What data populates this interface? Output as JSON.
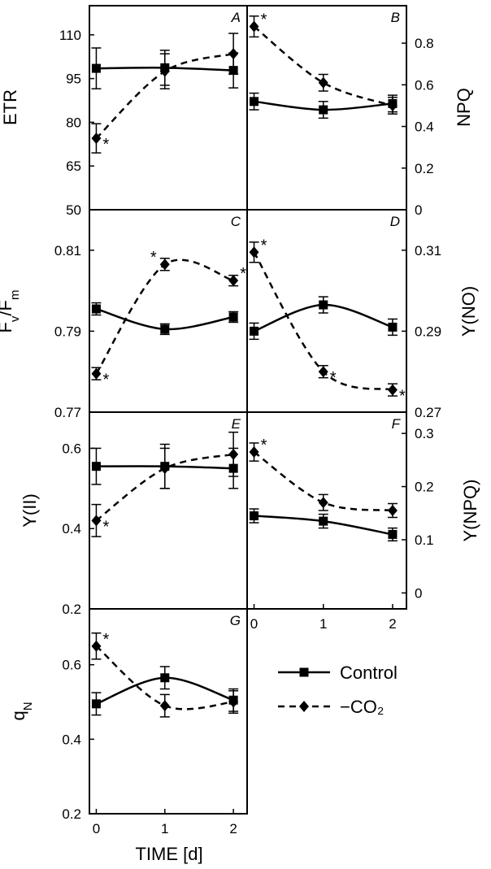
{
  "x_axis": {
    "label": "TIME [d]",
    "ticks": [
      "0",
      "1",
      "2"
    ],
    "range": [
      -0.1,
      2.2
    ]
  },
  "legend": {
    "items": [
      {
        "name": "Control",
        "line": "solid",
        "marker": "square"
      },
      {
        "name": "−CO₂",
        "line": "dashed",
        "marker": "diamond"
      }
    ]
  },
  "chart_data": [
    {
      "type": "line",
      "panel": "A",
      "ylabel_main": "ETR",
      "ylabel_sub": "",
      "yrange": [
        50,
        120
      ],
      "yticks": [
        "50",
        "65",
        "80",
        "95",
        "110"
      ],
      "x": [
        0,
        1,
        2
      ],
      "series": [
        {
          "name": "Control",
          "values": [
            98.5,
            98.7,
            97.8
          ],
          "errors": [
            7,
            6,
            6
          ]
        },
        {
          "name": "−CO₂",
          "values": [
            74.5,
            97.5,
            103.5
          ],
          "errors": [
            5,
            6,
            7
          ]
        }
      ],
      "significance": [
        0
      ]
    },
    {
      "type": "line",
      "panel": "B",
      "ylabel_main": "NPQ",
      "ylabel_sub": "",
      "yrange": [
        0,
        0.98
      ],
      "yticks": [
        "0",
        "0.2",
        "0.4",
        "0.6",
        "0.8"
      ],
      "x": [
        0,
        1,
        2
      ],
      "series": [
        {
          "name": "Control",
          "values": [
            0.52,
            0.48,
            0.51
          ],
          "errors": [
            0.04,
            0.04,
            0.04
          ]
        },
        {
          "name": "−CO₂",
          "values": [
            0.88,
            0.61,
            0.5
          ],
          "errors": [
            0.05,
            0.04,
            0.04
          ]
        }
      ],
      "significance": [
        0
      ]
    },
    {
      "type": "line",
      "panel": "C",
      "ylabel_main": "F",
      "ylabel_sub": "v",
      "ylabel_rest": "/F",
      "ylabel_sub2": "m",
      "yrange": [
        0.77,
        0.82
      ],
      "yticks": [
        "0.77",
        "0.79",
        "0.81"
      ],
      "x": [
        0,
        1,
        2
      ],
      "series": [
        {
          "name": "Control",
          "values": [
            0.7955,
            0.7905,
            0.7935
          ],
          "errors": [
            0.0015,
            0.0013,
            0.0013
          ]
        },
        {
          "name": "−CO₂",
          "values": [
            0.7795,
            0.8065,
            0.8025
          ],
          "errors": [
            0.0015,
            0.0015,
            0.0013
          ]
        }
      ],
      "significance": [
        0,
        1,
        2
      ]
    },
    {
      "type": "line",
      "panel": "D",
      "ylabel_main": "Y(NO)",
      "ylabel_sub": "",
      "yrange": [
        0.27,
        0.32
      ],
      "yticks": [
        "0.27",
        "0.29",
        "0.31"
      ],
      "x": [
        0,
        1,
        2
      ],
      "series": [
        {
          "name": "Control",
          "values": [
            0.29,
            0.2965,
            0.291
          ],
          "errors": [
            0.002,
            0.002,
            0.002
          ]
        },
        {
          "name": "−CO₂",
          "values": [
            0.3095,
            0.28,
            0.2755
          ],
          "errors": [
            0.0025,
            0.0015,
            0.0015
          ]
        }
      ],
      "significance": [
        0,
        1,
        2
      ]
    },
    {
      "type": "line",
      "panel": "E",
      "ylabel_main": "Y(II)",
      "ylabel_sub": "",
      "yrange": [
        0.2,
        0.69
      ],
      "yticks": [
        "0.2",
        "0.4",
        "0.6"
      ],
      "x": [
        0,
        1,
        2
      ],
      "series": [
        {
          "name": "Control",
          "values": [
            0.555,
            0.555,
            0.55
          ],
          "errors": [
            0.045,
            0.055,
            0.05
          ]
        },
        {
          "name": "−CO₂",
          "values": [
            0.42,
            0.55,
            0.585
          ],
          "errors": [
            0.04,
            0.05,
            0.055
          ]
        }
      ],
      "significance": [
        0
      ]
    },
    {
      "type": "line",
      "panel": "F",
      "ylabel_main": "Y(NPQ)",
      "ylabel_sub": "",
      "yrange": [
        -0.03,
        0.34
      ],
      "yticks": [
        "0",
        "0.1",
        "0.2",
        "0.3"
      ],
      "x": [
        0,
        1,
        2
      ],
      "series": [
        {
          "name": "Control",
          "values": [
            0.145,
            0.135,
            0.11
          ],
          "errors": [
            0.013,
            0.013,
            0.012
          ]
        },
        {
          "name": "−CO₂",
          "values": [
            0.265,
            0.17,
            0.155
          ],
          "errors": [
            0.017,
            0.015,
            0.013
          ]
        }
      ],
      "significance": [
        0
      ]
    },
    {
      "type": "line",
      "panel": "G",
      "ylabel_main": "q",
      "ylabel_sub": "N",
      "yrange": [
        0.2,
        0.75
      ],
      "yticks": [
        "0.2",
        "0.4",
        "0.6"
      ],
      "x": [
        0,
        1,
        2
      ],
      "series": [
        {
          "name": "Control",
          "values": [
            0.495,
            0.565,
            0.505
          ],
          "errors": [
            0.03,
            0.03,
            0.03
          ]
        },
        {
          "name": "−CO₂",
          "values": [
            0.65,
            0.49,
            0.5
          ],
          "errors": [
            0.035,
            0.03,
            0.03
          ]
        }
      ],
      "significance": [
        0
      ]
    }
  ],
  "colors": {
    "axis": "#000000",
    "qn_label": "#6b2020"
  },
  "significance_mark": "*"
}
